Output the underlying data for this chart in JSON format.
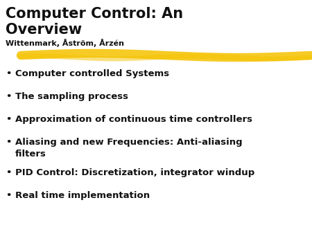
{
  "title_line1": "Computer Control: An",
  "title_line2": "Overview",
  "subtitle": "Wittenmark, Åström, Årzén",
  "bullet_items": [
    "Computer controlled Systems",
    "The sampling process",
    "Approximation of continuous time controllers",
    "Aliasing and new Frequencies: Anti-aliasing\nfilters",
    "PID Control: Discretization, integrator windup",
    "Real time implementation"
  ],
  "background_color": "#ffffff",
  "title_color": "#111111",
  "text_color": "#111111",
  "highlight_color": "#f5c200",
  "title_fontsize": 15,
  "subtitle_fontsize": 8,
  "bullet_fontsize": 9.5
}
